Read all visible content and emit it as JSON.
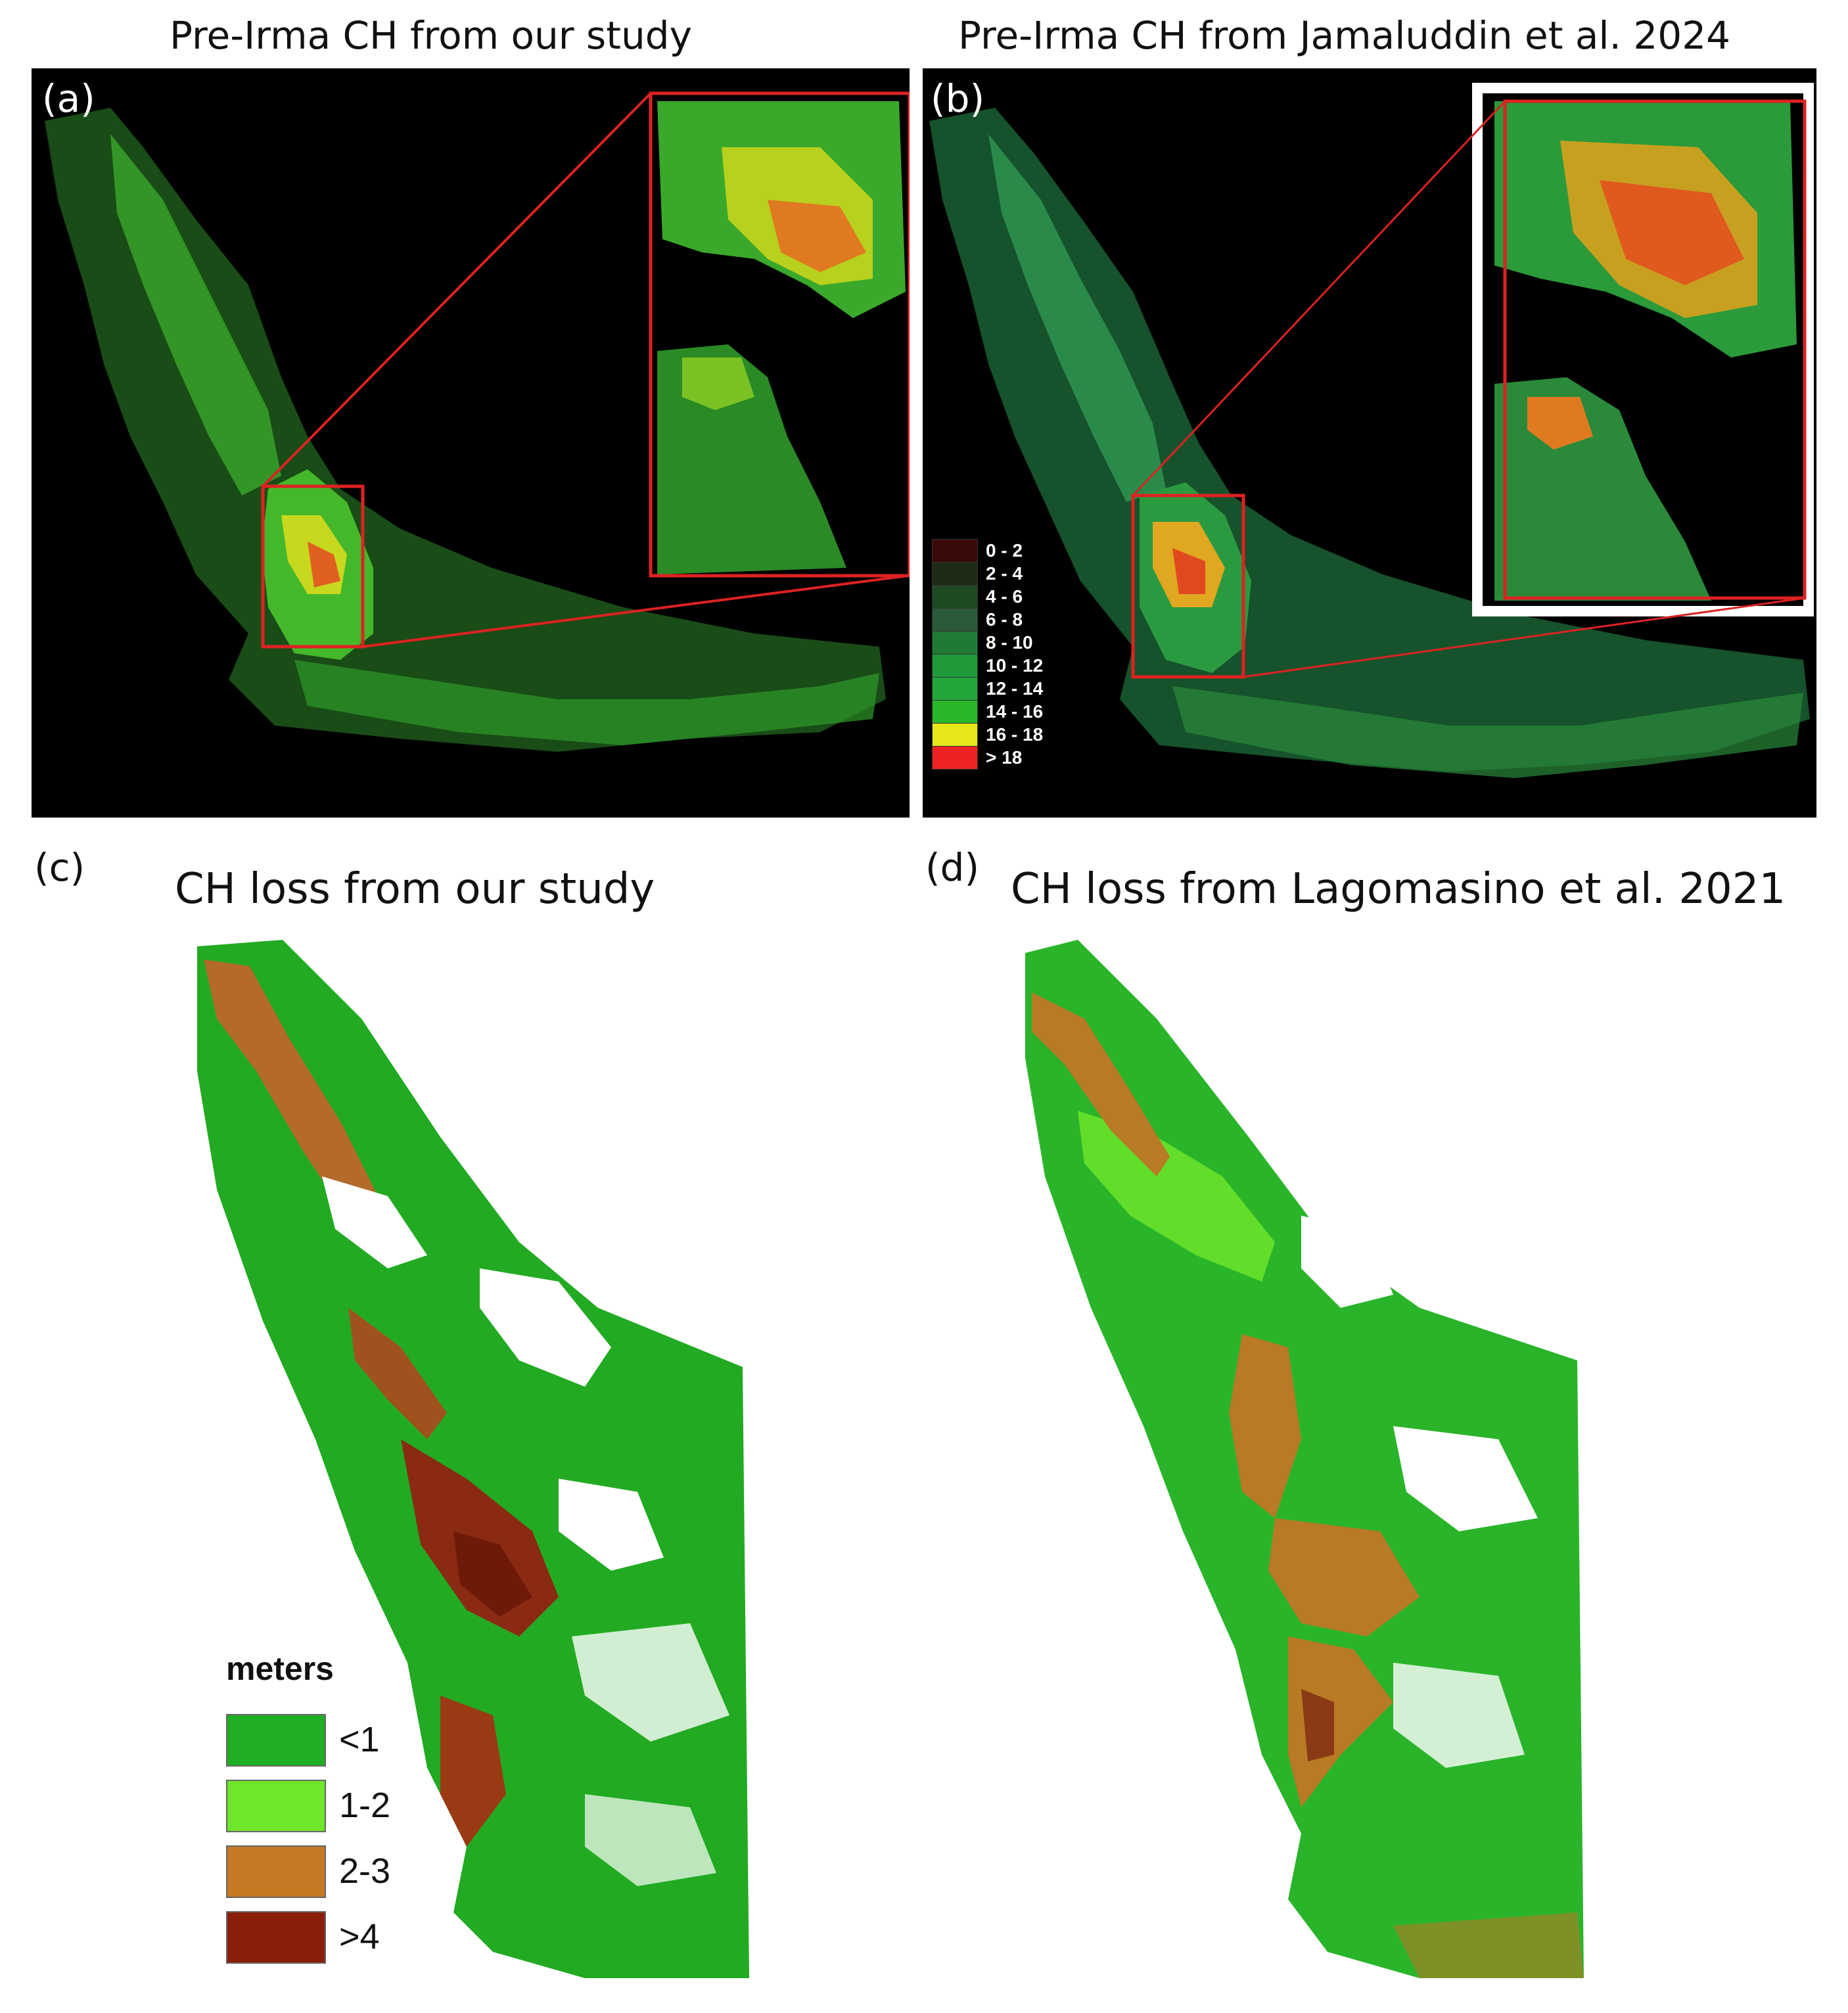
{
  "panels": {
    "a": {
      "letter": "(a)",
      "title": "Pre-Irma CH from our study"
    },
    "b": {
      "letter": "(b)",
      "title": "Pre-Irma CH from Jamaluddin et al. 2024"
    },
    "c": {
      "letter": "(c)",
      "title": "CH loss from our study"
    },
    "d": {
      "letter": "(d)",
      "title": "CH loss from Lagomasino et al. 2021"
    }
  },
  "legend_b": {
    "items": [
      {
        "label": "0 - 2",
        "color": "#3a0a0a"
      },
      {
        "label": "2 - 4",
        "color": "#1f2a14"
      },
      {
        "label": "4 - 6",
        "color": "#1e4a24"
      },
      {
        "label": "6 - 8",
        "color": "#2a5a3a"
      },
      {
        "label": "8 - 10",
        "color": "#1f7a34"
      },
      {
        "label": "10 - 12",
        "color": "#1e9a3a"
      },
      {
        "label": "12 - 14",
        "color": "#22a83a"
      },
      {
        "label": "14 - 16",
        "color": "#2ab82a"
      },
      {
        "label": "16 - 18",
        "color": "#e6e61a"
      },
      {
        "label": "> 18",
        "color": "#ee2222"
      }
    ]
  },
  "legend_c": {
    "title": "meters",
    "items": [
      {
        "label": "<1",
        "color": "#1fae24"
      },
      {
        "label": "1-2",
        "color": "#6ee62a"
      },
      {
        "label": "2-3",
        "color": "#c47a22"
      },
      {
        "label": ">4",
        "color": "#8a1e0a"
      }
    ]
  },
  "colors": {
    "zoom_box": "#dd2222",
    "inset_frame": "#ffffff",
    "dark_bg": "#000000"
  }
}
